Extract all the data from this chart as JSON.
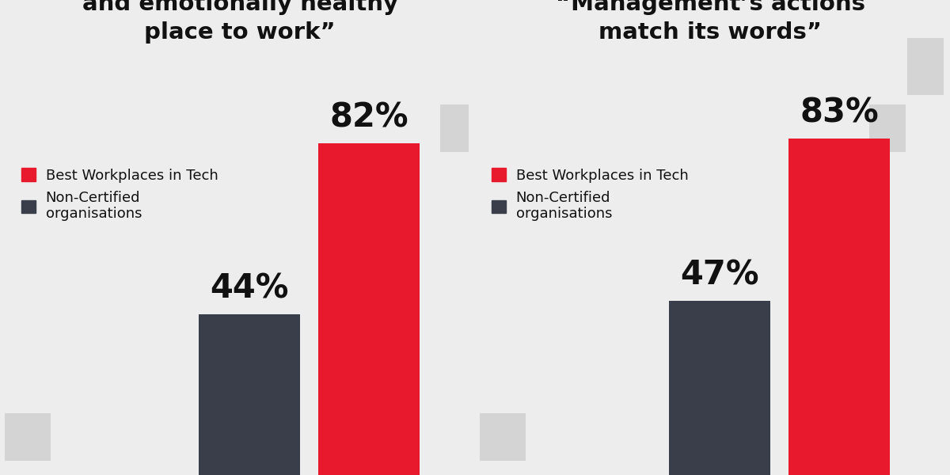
{
  "chart1": {
    "title": "“This is a psychologically\nand emotionally healthy\nplace to work”",
    "values": [
      44,
      82
    ],
    "labels": [
      "44%",
      "82%"
    ],
    "colors": [
      "#3a3d4a",
      "#e8192c"
    ],
    "legend_labels": [
      "Best Workplaces in Tech",
      "Non-Certified\norganisations"
    ]
  },
  "chart2": {
    "title": "“Management’s actions\nmatch its words”",
    "values": [
      47,
      83
    ],
    "labels": [
      "47%",
      "83%"
    ],
    "colors": [
      "#3a3d4a",
      "#e8192c"
    ],
    "legend_labels": [
      "Best Workplaces in Tech",
      "Non-Certified\norganisations"
    ]
  },
  "background_color": "#ededee",
  "title_fontsize": 21,
  "label_fontsize": 30,
  "legend_fontsize": 13,
  "text_color": "#111111",
  "deco_square_color": "#d4d4d4"
}
